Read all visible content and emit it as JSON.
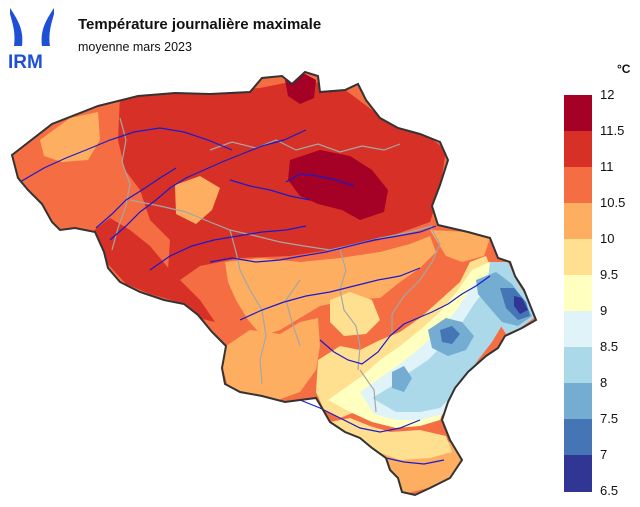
{
  "header": {
    "logo_text": "IRM",
    "title": "Température journalière maximale",
    "subtitle": "moyenne mars 2023"
  },
  "legend": {
    "unit": "°C",
    "ticks": [
      "12",
      "11.5",
      "11",
      "10.5",
      "10",
      "9.5",
      "9",
      "8.5",
      "8",
      "7.5",
      "7",
      "6.5"
    ],
    "colors": [
      "#a50026",
      "#d73027",
      "#f46d43",
      "#fdae61",
      "#fee090",
      "#ffffbf",
      "#e0f3f8",
      "#abd9e9",
      "#74add1",
      "#4575b4",
      "#313695"
    ]
  },
  "colors": {
    "border": "#333333",
    "rivers": "#1a1acc",
    "provinces": "#a6a6a6",
    "logo": "#1f4fd6"
  }
}
